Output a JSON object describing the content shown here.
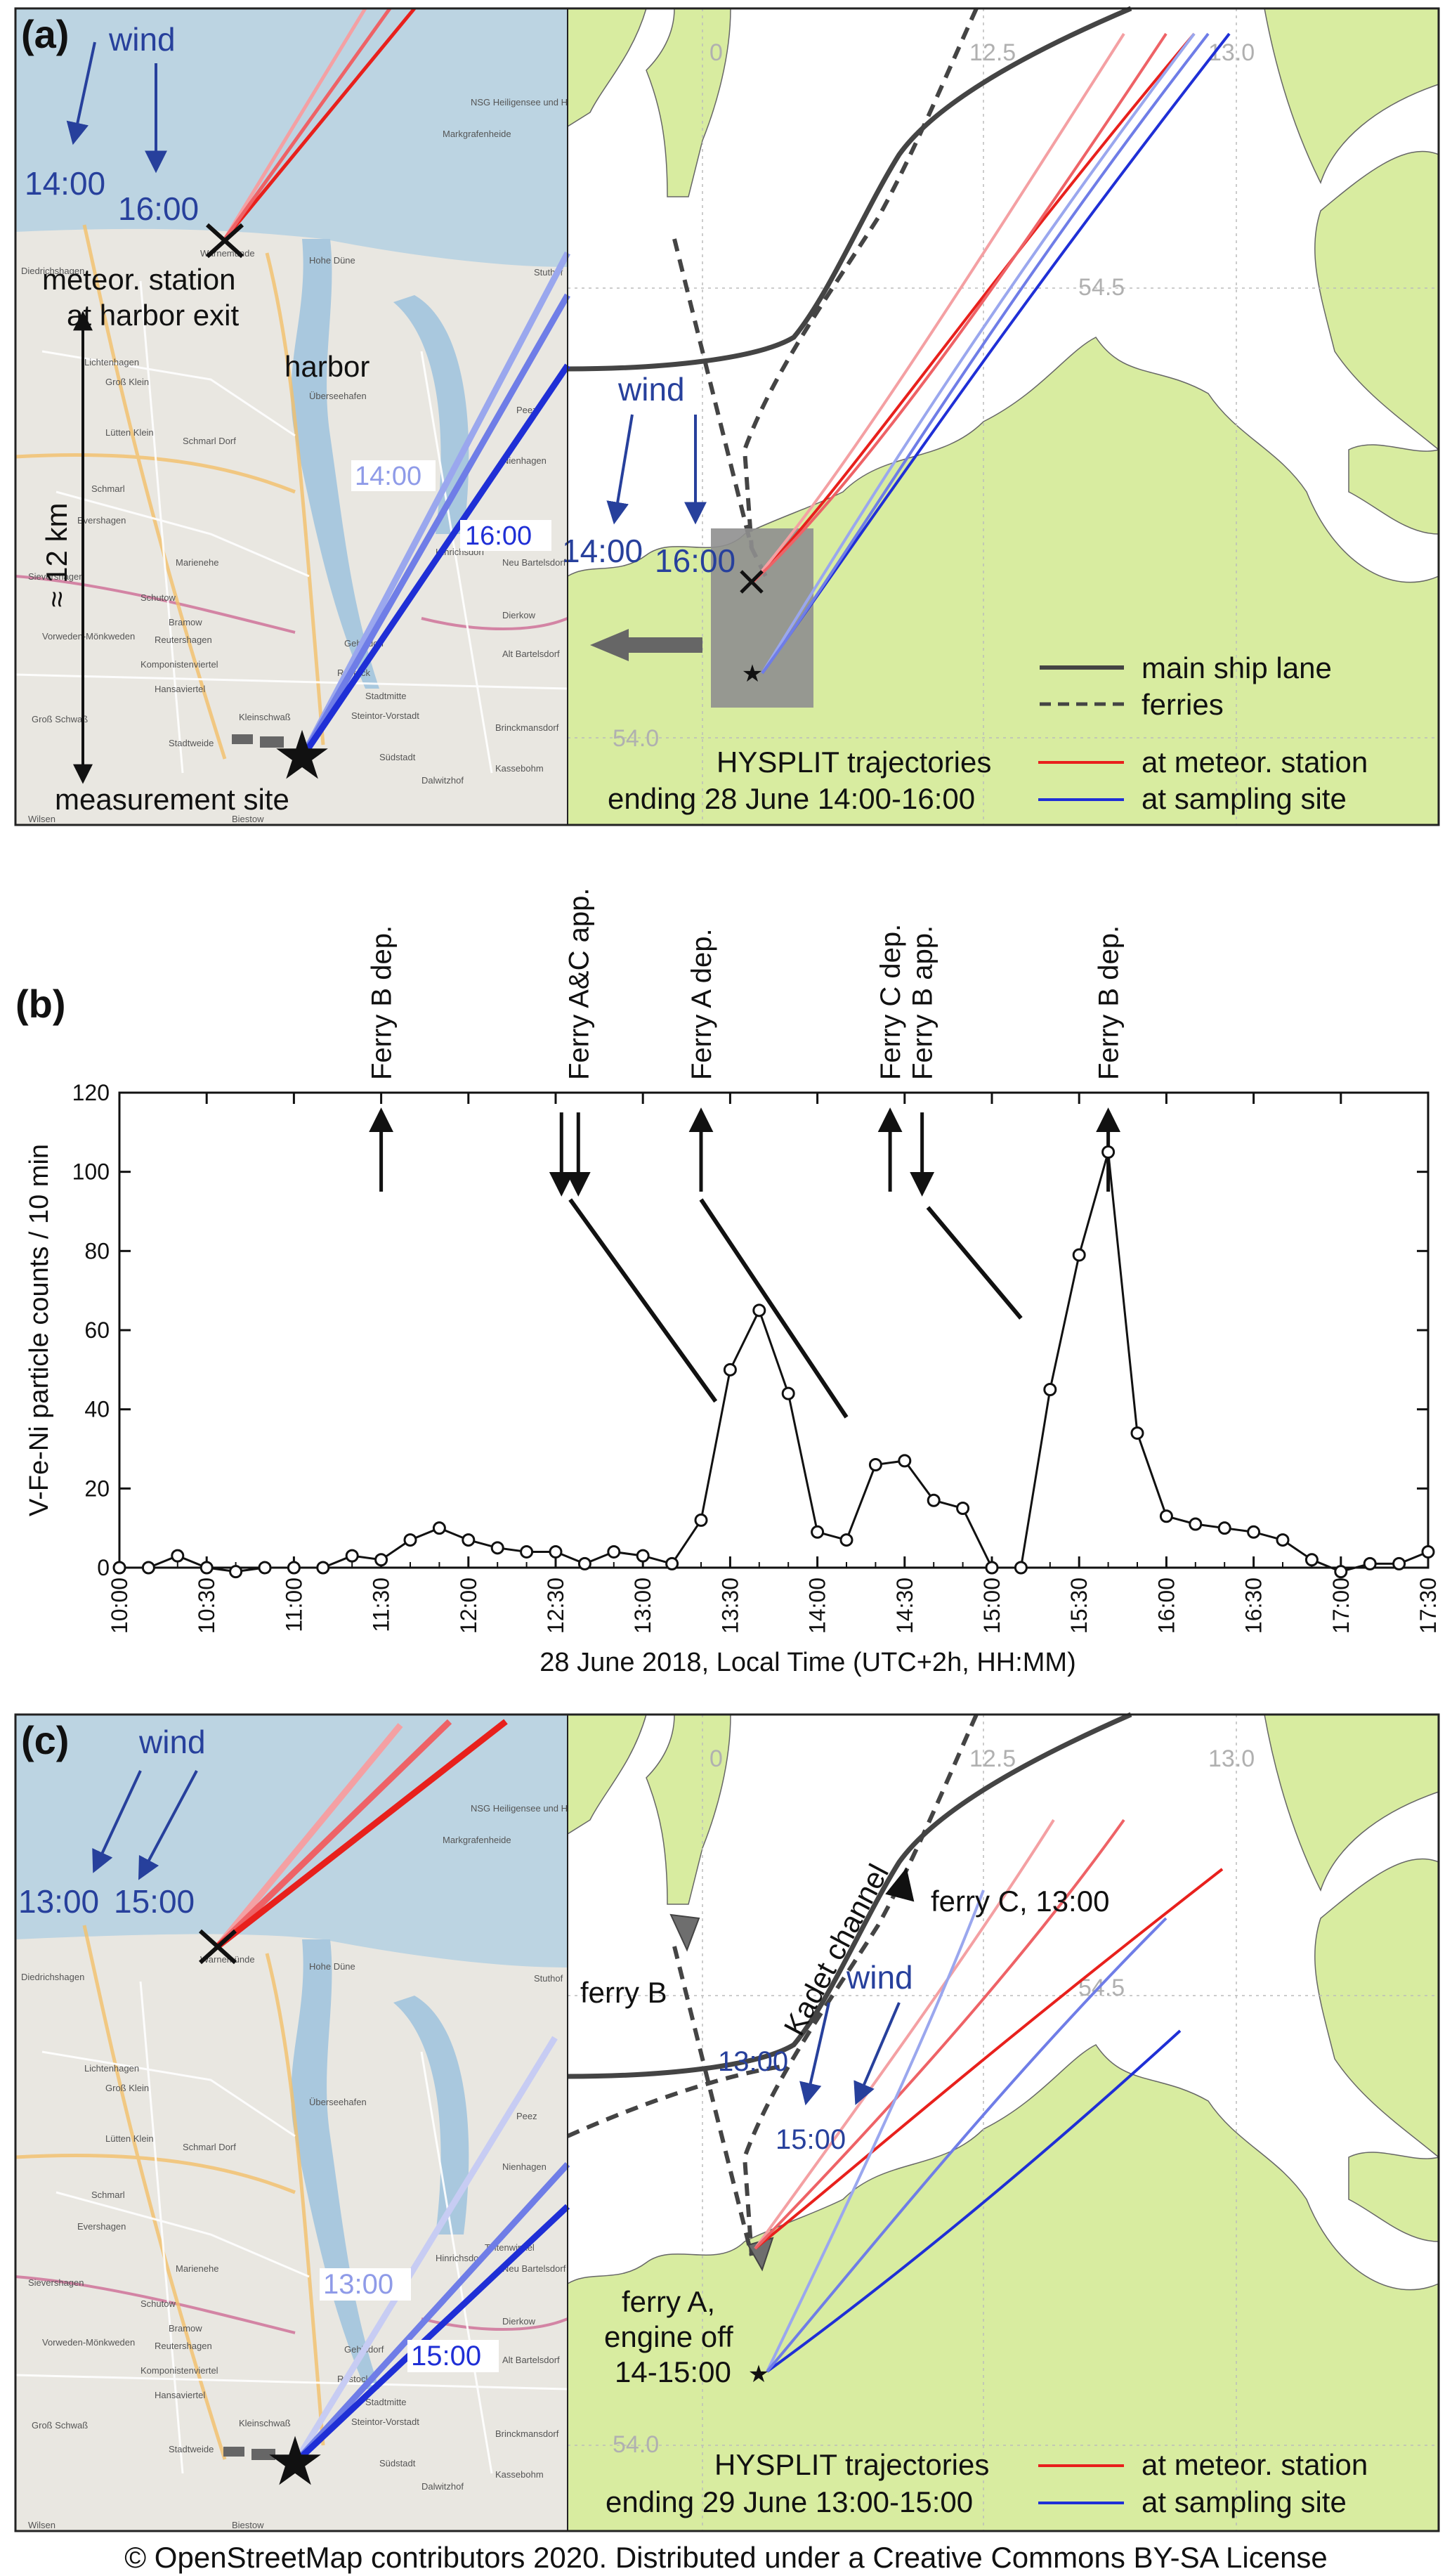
{
  "panel_a": {
    "letter": "(a)",
    "map_labels": {
      "wind_left": "wind",
      "time_14": "14:00",
      "time_16": "16:00",
      "station": "meteor. station",
      "station2": "at harbor exit",
      "harbor": "harbor",
      "distance": "≈ 12 km",
      "time_14_b": "14:00",
      "time_16_b": "16:00",
      "site": "measurement site",
      "wind_right": "wind",
      "time_14_r": "14:00",
      "time_16_r": "16:00"
    },
    "towns": [
      "NSG Heiligensee und Hütelmoor",
      "Markgrafenheide",
      "Hohe Düne",
      "Warnemünde",
      "Diedrichshagen",
      "Stuthof",
      "Lichtenhagen",
      "Groß Klein",
      "Überseehafen",
      "Peez",
      "Lütten Klein",
      "Schmarl Dorf",
      "Nienhagen",
      "Schmarl",
      "Evershagen",
      "Hinrichsdorf",
      "Toitenwinkel",
      "Sievershagen",
      "Marienehe",
      "Schutow",
      "Bramow",
      "Neu Bartelsdorf",
      "Vorweden-Mönkweden",
      "Reutershagen",
      "Gehlsdorf",
      "Dierkow",
      "Komponistenviertel",
      "Alt Bartelsdorf",
      "Hansaviertel",
      "Rostock",
      "Stadtmitte",
      "Groß Schwaß",
      "Steintor-Vorstadt",
      "Kleinschwaß",
      "Südstadt",
      "Brinckmansdorf",
      "Stadtweide",
      "Kassebohm",
      "Dalwitzhof",
      "Wilsen",
      "Biestow"
    ],
    "grid_labels": {
      "lon_125": "12.5",
      "lon_130": "13.0",
      "lat_545": "54.5",
      "lat_540": "54.0",
      "lon_120": "0"
    },
    "legend": {
      "ship_lane": "main ship lane",
      "ferries": "ferries",
      "hysplit": "HYSPLIT trajectories",
      "ending": "ending 28 June 14:00-16:00",
      "meteo": "at meteor. station",
      "site": "at sampling site"
    }
  },
  "panel_b": {
    "letter": "(b)",
    "ferry_events": [
      {
        "label": "Ferry B dep.",
        "time": "11:30",
        "direction": "up"
      },
      {
        "label": "Ferry A&C app.",
        "time": "12:32",
        "direction": "down"
      },
      {
        "label": "Ferry A dep.",
        "time": "13:20",
        "direction": "up"
      },
      {
        "label": "Ferry C dep.",
        "time": "14:25",
        "direction": "up"
      },
      {
        "label": "Ferry B app.",
        "time": "14:36",
        "direction": "down"
      },
      {
        "label": "Ferry B dep.",
        "time": "15:40",
        "direction": "up"
      }
    ]
  },
  "panel_c": {
    "letter": "(c)",
    "map_labels": {
      "wind_left": "wind",
      "time_13": "13:00",
      "time_15": "15:00",
      "time_13_b": "13:00",
      "time_15_b": "15:00",
      "ferry_b": "ferry B",
      "kadet": "Kadet channel",
      "ferry_c": "ferry C, 13:00",
      "wind_right": "wind",
      "time_13_r": "13:00",
      "time_15_r": "15:00",
      "ferry_a1": "ferry A,",
      "ferry_a2": "engine off",
      "ferry_a3": "14-15:00"
    },
    "towns": [
      "NSG Heiligensee und Hütelmoor",
      "Markgrafenheide",
      "Hohe Düne",
      "Warnemünde",
      "Diedrichshagen",
      "Stuthof",
      "Lichtenhagen",
      "Groß Klein",
      "Überseehafen",
      "Peez",
      "Lütten Klein",
      "Schmarl Dorf",
      "Nienhagen",
      "Schmarl",
      "Evershagen",
      "Hinrichsdorf",
      "Toitenwinkel",
      "Sievershagen",
      "Marienehe",
      "Schutow",
      "Bramow",
      "Neu Bartelsdorf",
      "Vorweden-Mönkweden",
      "Reutershagen",
      "Gehlsdorf",
      "Dierkow",
      "Komponistenviertel",
      "Alt Bartelsdorf",
      "Hansaviertel",
      "Rostock",
      "Stadtmitte",
      "Groß Schwaß",
      "Steintor-Vorstadt",
      "Kleinschwaß",
      "Südstadt",
      "Brinckmansdorf",
      "Stadtweide",
      "Kassebohm",
      "Dalwitzhof",
      "Wilsen",
      "Biestow"
    ],
    "grid_labels": {
      "lon_125": "12.5",
      "lon_130": "13.0",
      "lat_545": "54.5",
      "lat_540": "54.0",
      "lon_120": "0"
    },
    "legend": {
      "hysplit": "HYSPLIT trajectories",
      "ending": "ending 29 June 13:00-15:00",
      "meteo": "at meteor. station",
      "site": "at sampling site"
    }
  },
  "copyright": "© OpenStreetMap contributors 2020. Distributed under a Creative Commons BY-SA License",
  "colors": {
    "trajectory_meteo": "#e8201c",
    "trajectory_site": "#1f2fd6",
    "land": "#d8eca0",
    "sea_map": "#bcd4e2",
    "wind_label": "#27409c"
  },
  "chart_data": {
    "type": "line",
    "xlabel": "28 June 2018, Local Time (UTC+2h, HH:MM)",
    "ylabel": "V-Fe-Ni particle counts / 10 min",
    "ylim": [
      0,
      120
    ],
    "yticks": [
      0,
      20,
      40,
      60,
      80,
      100,
      120
    ],
    "xlim": [
      "10:00",
      "17:30"
    ],
    "xticks": [
      "10:00",
      "10:30",
      "11:00",
      "11:30",
      "12:00",
      "12:30",
      "13:00",
      "13:30",
      "14:00",
      "14:30",
      "15:00",
      "15:30",
      "16:00",
      "16:30",
      "17:00",
      "17:30"
    ],
    "grid": false,
    "marker": "open-circle",
    "series": [
      {
        "x": [
          "10:00",
          "10:10",
          "10:20",
          "10:30",
          "10:40",
          "10:50",
          "11:00",
          "11:10",
          "11:20",
          "11:30",
          "11:40",
          "11:50",
          "12:00",
          "12:10",
          "12:20",
          "12:30",
          "12:40",
          "12:50",
          "13:00",
          "13:10",
          "13:20",
          "13:30",
          "13:40",
          "13:50",
          "14:00",
          "14:10",
          "14:20",
          "14:30",
          "14:40",
          "14:50",
          "15:00",
          "15:10",
          "15:20",
          "15:30",
          "15:40",
          "15:50",
          "16:00",
          "16:10",
          "16:20",
          "16:30",
          "16:40",
          "16:50",
          "17:00",
          "17:10",
          "17:20",
          "17:30"
        ],
        "values": [
          0,
          0,
          3,
          0,
          -1,
          0,
          0,
          0,
          3,
          2,
          7,
          10,
          7,
          5,
          4,
          4,
          1,
          4,
          3,
          1,
          12,
          50,
          65,
          44,
          9,
          7,
          26,
          27,
          17,
          15,
          0,
          0,
          45,
          79,
          105,
          34,
          13,
          11,
          10,
          9,
          7,
          2,
          -1,
          1,
          1,
          4
        ]
      }
    ],
    "annotations": [
      {
        "x1": "12:35",
        "y1": 93,
        "x2": "13:25",
        "y2": 42
      },
      {
        "x1": "13:20",
        "y1": 93,
        "x2": "14:10",
        "y2": 38
      },
      {
        "x1": "14:38",
        "y1": 91,
        "x2": "15:10",
        "y2": 63
      }
    ]
  }
}
